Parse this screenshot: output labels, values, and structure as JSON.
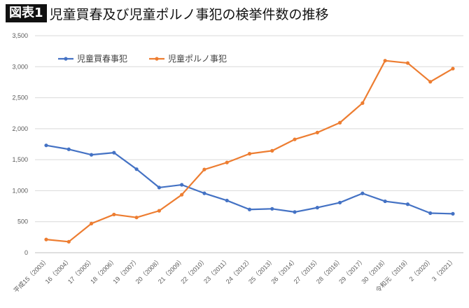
{
  "header": {
    "badge": "図表1",
    "title": "児童買春及び児童ポルノ事犯の検挙件数の推移"
  },
  "chart_data": {
    "type": "line",
    "title": "",
    "xlabel": "",
    "ylabel": "",
    "ylim": [
      0,
      3500
    ],
    "yticks": [
      "0",
      "500",
      "1,000",
      "1,500",
      "2,000",
      "2,500",
      "3,000",
      "3,500"
    ],
    "ytick_values": [
      0,
      500,
      1000,
      1500,
      2000,
      2500,
      3000,
      3500
    ],
    "grid": true,
    "legend_position": "top-left",
    "categories": [
      "平成15（2003）",
      "16（2004）",
      "17（2005）",
      "18（2006）",
      "19（2007）",
      "20（2008）",
      "21（2009）",
      "22（2010）",
      "23（2011）",
      "24（2012）",
      "25（2013）",
      "26（2014）",
      "27（2015）",
      "28（2016）",
      "29（2017）",
      "30（2018）",
      "令和元（2019）",
      "2（2020）",
      "3（2021）"
    ],
    "series": [
      {
        "name": "児童買春事犯",
        "color": "#4472C4",
        "values": [
          1731,
          1668,
          1579,
          1613,
          1347,
          1051,
          1095,
          958,
          842,
          697,
          708,
          656,
          727,
          808,
          957,
          829,
          782,
          638,
          628
        ]
      },
      {
        "name": "児童ポルノ事犯",
        "color": "#ED7D31",
        "values": [
          213,
          177,
          470,
          616,
          568,
          676,
          935,
          1342,
          1455,
          1596,
          1644,
          1828,
          1938,
          2097,
          2413,
          3097,
          3059,
          2757,
          2969
        ]
      }
    ]
  }
}
